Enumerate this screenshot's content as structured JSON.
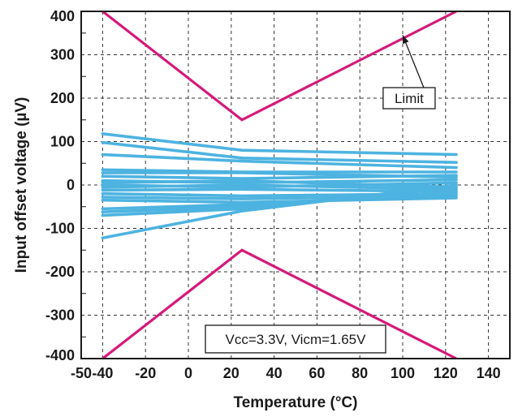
{
  "chart_data": {
    "type": "line",
    "title": "",
    "xlabel": "Temperature (°C)",
    "ylabel": "Input offset voltage (µV)",
    "xlim": [
      -50,
      150
    ],
    "ylim": [
      -400,
      400
    ],
    "x_ticks": [
      "-50",
      "-40",
      "-20",
      "0",
      "20",
      "40",
      "60",
      "80",
      "100",
      "120",
      "140"
    ],
    "y_ticks": [
      "400",
      "300",
      "200",
      "100",
      "0",
      "-100",
      "-200",
      "-300",
      "-400"
    ],
    "grid": true,
    "annotations": {
      "limit_label": "Limit",
      "condition_label": "Vcc=3.3V, Vicm=1.65V"
    },
    "colors": {
      "limit": "#d6197a",
      "samples": "#4db3e0",
      "grid": "#333333"
    },
    "limit_lines": [
      {
        "x": [
          -40,
          25,
          125
        ],
        "y": [
          400,
          150,
          400
        ]
      },
      {
        "x": [
          -40,
          25,
          125
        ],
        "y": [
          -400,
          -150,
          -400
        ]
      }
    ],
    "series": [
      {
        "x": [
          -40,
          25,
          125
        ],
        "y": [
          118,
          80,
          70
        ]
      },
      {
        "x": [
          -40,
          25,
          125
        ],
        "y": [
          98,
          62,
          52
        ]
      },
      {
        "x": [
          -40,
          25,
          125
        ],
        "y": [
          70,
          55,
          40
        ]
      },
      {
        "x": [
          -40,
          25,
          125
        ],
        "y": [
          35,
          30,
          30
        ]
      },
      {
        "x": [
          -40,
          25,
          125
        ],
        "y": [
          28,
          28,
          18
        ]
      },
      {
        "x": [
          -40,
          25,
          125
        ],
        "y": [
          20,
          15,
          22
        ]
      },
      {
        "x": [
          -40,
          25,
          125
        ],
        "y": [
          10,
          5,
          12
        ]
      },
      {
        "x": [
          -40,
          25,
          125
        ],
        "y": [
          5,
          10,
          -5
        ]
      },
      {
        "x": [
          -40,
          25,
          125
        ],
        "y": [
          0,
          -5,
          5
        ]
      },
      {
        "x": [
          -40,
          25,
          125
        ],
        "y": [
          -5,
          0,
          -10
        ]
      },
      {
        "x": [
          -40,
          25,
          125
        ],
        "y": [
          -12,
          -10,
          -15
        ]
      },
      {
        "x": [
          -40,
          25,
          125
        ],
        "y": [
          -20,
          -25,
          -20
        ]
      },
      {
        "x": [
          -40,
          25,
          125
        ],
        "y": [
          -28,
          -32,
          -25
        ]
      },
      {
        "x": [
          -40,
          25,
          125
        ],
        "y": [
          -35,
          -40,
          -30
        ]
      },
      {
        "x": [
          -40,
          25,
          125
        ],
        "y": [
          -55,
          -45,
          -20
        ]
      },
      {
        "x": [
          -40,
          25,
          125
        ],
        "y": [
          -62,
          -50,
          -15
        ]
      },
      {
        "x": [
          -40,
          25,
          125
        ],
        "y": [
          -70,
          -55,
          -5
        ]
      },
      {
        "x": [
          -40,
          25,
          125
        ],
        "y": [
          -122,
          -60,
          0
        ]
      }
    ]
  }
}
